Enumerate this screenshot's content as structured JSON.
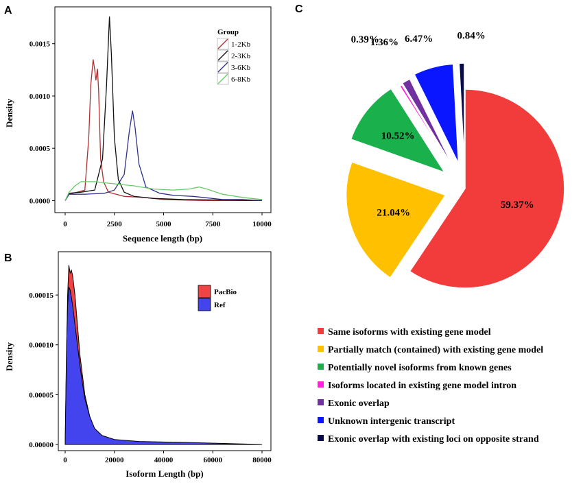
{
  "chart_data": [
    {
      "panel": "A",
      "type": "line",
      "xlabel": "Sequence length (bp)",
      "ylabel": "Density",
      "xlim": [
        0,
        10000
      ],
      "ylim": [
        -5e-05,
        0.0018
      ],
      "x_ticks": [
        0,
        2500,
        5000,
        7500,
        10000
      ],
      "y_ticks": [
        0.0,
        0.0005,
        0.001,
        0.0015
      ],
      "y_tick_labels": [
        "0.0000",
        "0.0005",
        "0.0010",
        "0.0015"
      ],
      "legend_title": "Group",
      "series": [
        {
          "name": "1-2Kb",
          "color": "#b03030",
          "points": [
            [
              0,
              0
            ],
            [
              200,
              6e-05
            ],
            [
              600,
              8e-05
            ],
            [
              1000,
              0.0001
            ],
            [
              1200,
              0.0006
            ],
            [
              1300,
              0.0011
            ],
            [
              1420,
              0.00135
            ],
            [
              1500,
              0.00125
            ],
            [
              1560,
              0.00115
            ],
            [
              1640,
              0.00126
            ],
            [
              1700,
              0.00105
            ],
            [
              1800,
              0.0004
            ],
            [
              1950,
              0.00018
            ],
            [
              2200,
              8e-05
            ],
            [
              3000,
              4e-05
            ],
            [
              4000,
              3e-05
            ],
            [
              5000,
              1e-05
            ],
            [
              7000,
              0
            ],
            [
              10000,
              0
            ]
          ]
        },
        {
          "name": "2-3Kb",
          "color": "#111111",
          "points": [
            [
              0,
              0
            ],
            [
              200,
              7e-05
            ],
            [
              800,
              8e-05
            ],
            [
              1500,
              0.0001
            ],
            [
              1900,
              0.0004
            ],
            [
              2100,
              0.0011
            ],
            [
              2250,
              0.00176
            ],
            [
              2350,
              0.0014
            ],
            [
              2500,
              0.0006
            ],
            [
              2700,
              0.0002
            ],
            [
              3000,
              8e-05
            ],
            [
              3500,
              4e-05
            ],
            [
              4500,
              2e-05
            ],
            [
              6000,
              1e-05
            ],
            [
              10000,
              0
            ]
          ]
        },
        {
          "name": "3-6Kb",
          "color": "#303090",
          "points": [
            [
              0,
              0
            ],
            [
              200,
              6e-05
            ],
            [
              1000,
              6e-05
            ],
            [
              2000,
              7e-05
            ],
            [
              2500,
              0.0001
            ],
            [
              3000,
              0.00025
            ],
            [
              3250,
              0.00065
            ],
            [
              3420,
              0.00086
            ],
            [
              3550,
              0.0007
            ],
            [
              3750,
              0.00035
            ],
            [
              4100,
              0.00013
            ],
            [
              4800,
              7e-05
            ],
            [
              5500,
              5e-05
            ],
            [
              6500,
              4e-05
            ],
            [
              7000,
              3e-05
            ],
            [
              8000,
              1e-05
            ],
            [
              9000,
              1e-05
            ],
            [
              10000,
              0
            ]
          ]
        },
        {
          "name": "6-8Kb",
          "color": "#66cc66",
          "points": [
            [
              0,
              0
            ],
            [
              200,
              8e-05
            ],
            [
              500,
              0.00014
            ],
            [
              800,
              0.00018
            ],
            [
              1500,
              0.00018
            ],
            [
              2500,
              0.00016
            ],
            [
              3500,
              0.00014
            ],
            [
              4500,
              0.00011
            ],
            [
              5500,
              0.0001
            ],
            [
              6300,
              0.00011
            ],
            [
              6800,
              0.00013
            ],
            [
              7200,
              0.00011
            ],
            [
              8000,
              6e-05
            ],
            [
              9000,
              3e-05
            ],
            [
              10000,
              1e-05
            ]
          ]
        }
      ]
    },
    {
      "panel": "B",
      "type": "area",
      "xlabel": "Isoform Length (bp)",
      "ylabel": "Density",
      "xlim": [
        0,
        80000
      ],
      "ylim": [
        0,
        0.00019
      ],
      "x_ticks": [
        0,
        20000,
        40000,
        60000,
        80000
      ],
      "y_ticks": [
        0.0,
        5e-05,
        0.0001,
        0.00015
      ],
      "y_tick_labels": [
        "0.00000",
        "0.00005",
        "0.00010",
        "0.00015"
      ],
      "series": [
        {
          "name": "PacBio",
          "color": "#ee4444",
          "points": [
            [
              0,
              0
            ],
            [
              500,
              8e-05
            ],
            [
              1000,
              0.00015
            ],
            [
              1500,
              0.00018
            ],
            [
              2000,
              0.000172
            ],
            [
              2500,
              0.000175
            ],
            [
              3000,
              0.00017
            ],
            [
              4000,
              0.00015
            ],
            [
              5000,
              0.00012
            ],
            [
              6000,
              9e-05
            ],
            [
              7000,
              7e-05
            ],
            [
              8000,
              5e-05
            ],
            [
              10000,
              2.8e-05
            ],
            [
              12000,
              1.5e-05
            ],
            [
              15000,
              8e-06
            ],
            [
              20000,
              4e-06
            ],
            [
              30000,
              2e-06
            ],
            [
              50000,
              1e-06
            ],
            [
              80000,
              0
            ]
          ]
        },
        {
          "name": "Ref",
          "color": "#4444ee",
          "points": [
            [
              0,
              0
            ],
            [
              500,
              9e-05
            ],
            [
              1000,
              0.00014
            ],
            [
              1500,
              0.000158
            ],
            [
              2000,
              0.000155
            ],
            [
              2500,
              0.000148
            ],
            [
              3000,
              0.00014
            ],
            [
              4000,
              0.00012
            ],
            [
              5000,
              0.0001
            ],
            [
              6000,
              8e-05
            ],
            [
              7000,
              6.2e-05
            ],
            [
              8000,
              4.6e-05
            ],
            [
              10000,
              2.8e-05
            ],
            [
              12000,
              1.6e-05
            ],
            [
              15000,
              9e-06
            ],
            [
              20000,
              5e-06
            ],
            [
              30000,
              3e-06
            ],
            [
              50000,
              2e-06
            ],
            [
              80000,
              0
            ]
          ]
        }
      ]
    },
    {
      "panel": "C",
      "type": "pie",
      "slices": [
        {
          "label": "Same isoforms with existing gene model",
          "value": 59.37,
          "pct_label": "59.37%",
          "color": "#f23b3b"
        },
        {
          "label": "Partially match (contained) with existing gene model",
          "value": 21.04,
          "pct_label": "21.04%",
          "color": "#ffc000"
        },
        {
          "label": "Potentially novel isoforms from known genes",
          "value": 10.52,
          "pct_label": "10.52%",
          "color": "#1ab04c"
        },
        {
          "label": "Isoforms located in existing gene model intron",
          "value": 0.39,
          "pct_label": "0.39%",
          "color": "#ff22dd"
        },
        {
          "label": "Exonic overlap",
          "value": 1.36,
          "pct_label": "1.36%",
          "color": "#7030a0"
        },
        {
          "label": "Unknown intergenic transcript",
          "value": 6.47,
          "pct_label": "6.47%",
          "color": "#0a16ff"
        },
        {
          "label": "Exonic overlap with existing loci on opposite strand",
          "value": 0.84,
          "pct_label": "0.84%",
          "color": "#0a0a4a"
        }
      ]
    }
  ]
}
